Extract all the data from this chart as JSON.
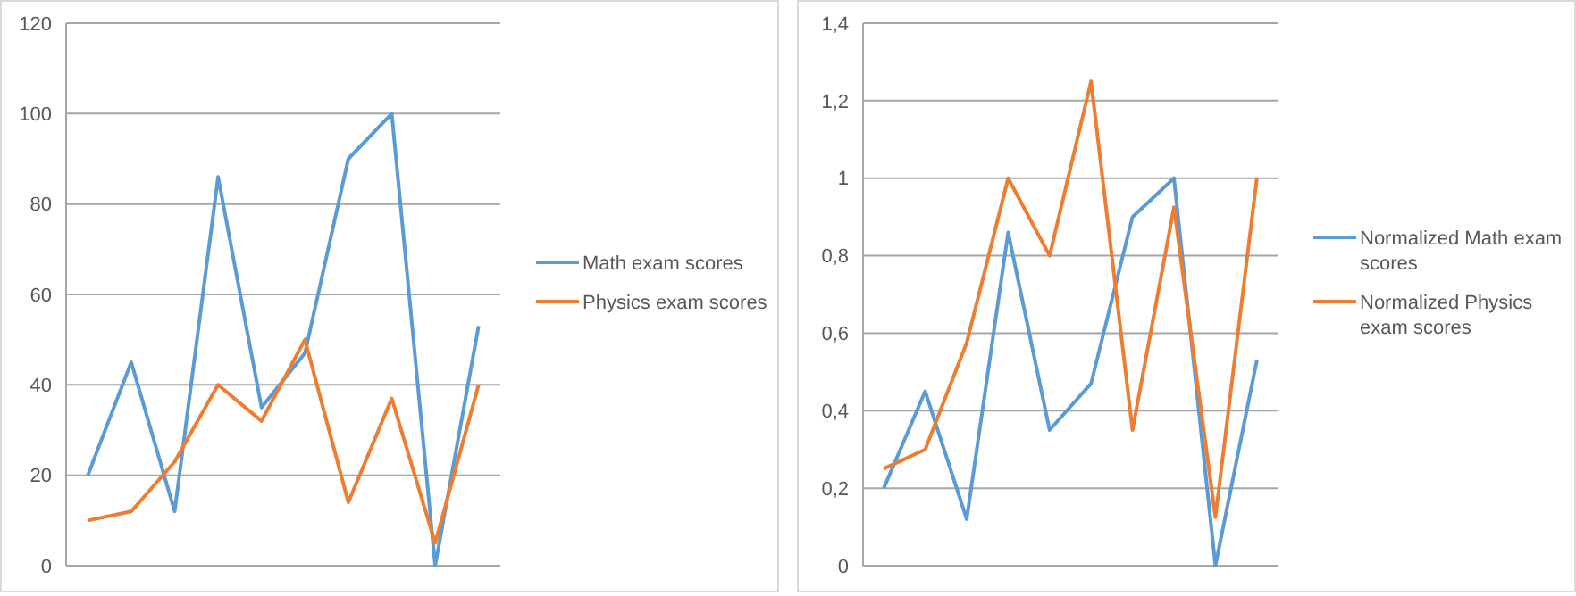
{
  "chart_data": [
    {
      "type": "line",
      "categories": [
        null,
        null,
        null,
        null,
        null,
        null,
        null,
        null,
        null,
        null
      ],
      "series": [
        {
          "name": "Math exam scores",
          "color": "#5b9bd5",
          "values": [
            20,
            45,
            12,
            86,
            35,
            47,
            90,
            100,
            0,
            53
          ]
        },
        {
          "name": "Physics exam scores",
          "color": "#ed7d31",
          "values": [
            10,
            12,
            23,
            40,
            32,
            50,
            14,
            37,
            5,
            40
          ]
        }
      ],
      "ylim": [
        0,
        120
      ],
      "yticks": [
        0,
        20,
        40,
        60,
        80,
        100,
        120
      ],
      "grid": "y",
      "legend": "right",
      "marker": "none",
      "line_style": "solid"
    },
    {
      "type": "line",
      "categories": [
        null,
        null,
        null,
        null,
        null,
        null,
        null,
        null,
        null,
        null
      ],
      "series": [
        {
          "name": "Normalized Math exam scores",
          "color": "#5b9bd5",
          "values": [
            0.2,
            0.45,
            0.12,
            0.86,
            0.35,
            0.47,
            0.9,
            1,
            0,
            0.53
          ]
        },
        {
          "name": "Normalized Physics exam scores",
          "color": "#ed7d31",
          "values": [
            0.25,
            0.3,
            0.575,
            1,
            0.8,
            1.25,
            0.35,
            0.925,
            0.125,
            1
          ]
        }
      ],
      "ylim": [
        0,
        1.4
      ],
      "yticks": [
        0,
        {
          "value": 0.2,
          "label": "0,2"
        },
        {
          "value": 0.4,
          "label": "0,4"
        },
        {
          "value": 0.6,
          "label": "0,6"
        },
        {
          "value": 0.8,
          "label": "0,8"
        },
        1,
        {
          "value": 1.2,
          "label": "1,2"
        },
        {
          "value": 1.4,
          "label": "1,4"
        }
      ],
      "grid": "y",
      "legend": "right",
      "marker": "none",
      "line_style": "solid"
    }
  ]
}
